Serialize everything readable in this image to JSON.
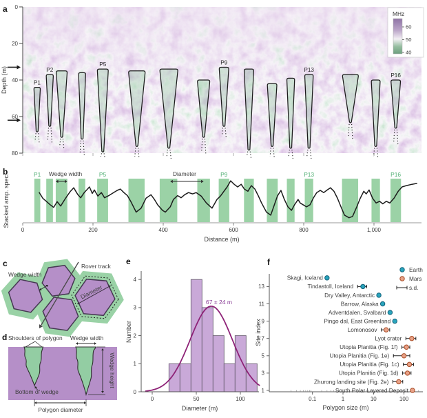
{
  "panels": {
    "a": {
      "letter": "a",
      "ylabel": "Depth (m)",
      "colorbar": {
        "title": "MHz",
        "ticks": [
          60,
          50,
          40
        ]
      }
    },
    "b": {
      "letter": "b",
      "ylabel": "Stacked amp. spec.",
      "xlabel": "Distance (m)",
      "xtick_labels": [
        "0",
        "200",
        "400",
        "600",
        "800",
        "1,000"
      ],
      "ann_wedge_width": "Wedge width",
      "ann_diameter": "Diameter"
    },
    "c": {
      "letter": "c",
      "rover_track": "Rover track",
      "wedge_width": "Wedge width",
      "diameter": "Diameter"
    },
    "d": {
      "letter": "d",
      "shoulders": "Shoulders of polygon",
      "wedge_width": "Wedge width",
      "bottom": "Bottom of wedge",
      "height": "Wedge height",
      "diameter": "Polygon diameter"
    },
    "e": {
      "letter": "e",
      "ylabel": "Number",
      "xlabel": "Diameter (m)",
      "annotation": "67 ± 24 m"
    },
    "f": {
      "letter": "f",
      "ylabel": "Site index",
      "xlabel": "Polygon size (m)",
      "legend": {
        "earth": "Earth",
        "mars": "Mars",
        "sd": "s.d."
      }
    }
  },
  "colors": {
    "band_green": "#9bd2a6",
    "band_label_green": "#4fae72",
    "curve_black": "#1c1c1c",
    "hist_bar_fill": "#c9a9d8",
    "hist_bar_edge": "#6e6276",
    "gauss_purple": "#8e2277",
    "annotation_purple": "#8b3f97",
    "earth_fill": "#2aa5bd",
    "earth_edge": "#11617a",
    "mars_fill": "#e8a187",
    "mars_edge": "#a84b24",
    "diagram_purple": "#b58fc8",
    "diagram_green": "#9ad2a6",
    "wedge_outline": "#1b1b1b",
    "axis_dark": "#444444",
    "axis_light": "#999999",
    "text_dark": "#3c3c3c"
  },
  "chart_data": [
    {
      "panel": "a",
      "type": "heatmap",
      "description": "Rover penetrating radargram with interpreted ice-wedge outlines",
      "ylabel": "Depth (m)",
      "depth_ticks_m": [
        0,
        20,
        40,
        60,
        80
      ],
      "xlim_m": [
        0,
        1135
      ],
      "arrow_depths_m": [
        33,
        62
      ],
      "colorbar": {
        "label": "MHz",
        "ticks": [
          60,
          50,
          40
        ]
      },
      "wedges": [
        {
          "label": "P1",
          "center_m": 41,
          "width_m": 18,
          "top_m": 44,
          "bottom_m": 68
        },
        {
          "label": "P2",
          "center_m": 77,
          "width_m": 20,
          "top_m": 37,
          "bottom_m": 65
        },
        {
          "label": null,
          "center_m": 111,
          "width_m": 31,
          "top_m": 35,
          "bottom_m": 71
        },
        {
          "label": null,
          "center_m": 169,
          "width_m": 20,
          "top_m": 36,
          "bottom_m": 72
        },
        {
          "label": "P5",
          "center_m": 228,
          "width_m": 31,
          "top_m": 34,
          "bottom_m": 79
        },
        {
          "label": null,
          "center_m": 325,
          "width_m": 47,
          "top_m": 35,
          "bottom_m": 76
        },
        {
          "label": null,
          "center_m": 416,
          "width_m": 51,
          "top_m": 34,
          "bottom_m": 77
        },
        {
          "label": null,
          "center_m": 515,
          "width_m": 35,
          "top_m": 40,
          "bottom_m": 71
        },
        {
          "label": "P9",
          "center_m": 573,
          "width_m": 27,
          "top_m": 33,
          "bottom_m": 65
        },
        {
          "label": null,
          "center_m": 644,
          "width_m": 27,
          "top_m": 34,
          "bottom_m": 78
        },
        {
          "label": null,
          "center_m": 710,
          "width_m": 27,
          "top_m": 42,
          "bottom_m": 76
        },
        {
          "label": null,
          "center_m": 763,
          "width_m": 22,
          "top_m": 39,
          "bottom_m": 77
        },
        {
          "label": "P13",
          "center_m": 815,
          "width_m": 24,
          "top_m": 37,
          "bottom_m": 77
        },
        {
          "label": null,
          "center_m": 933,
          "width_m": 45,
          "top_m": 37,
          "bottom_m": 63
        },
        {
          "label": null,
          "center_m": 1005,
          "width_m": 25,
          "top_m": 40,
          "bottom_m": 76
        },
        {
          "label": "P16",
          "center_m": 1062,
          "width_m": 27,
          "top_m": 40,
          "bottom_m": 66
        }
      ]
    },
    {
      "panel": "b",
      "type": "line",
      "xlabel": "Distance (m)",
      "ylabel": "Stacked amp. spec.",
      "xlim": [
        0,
        1135
      ],
      "xticks": [
        0,
        200,
        400,
        600,
        800,
        1000
      ],
      "annotations": [
        {
          "text": "Wedge width",
          "span_m": [
            94,
            127
          ]
        },
        {
          "text": "Diameter",
          "span_m": [
            420,
            515
          ]
        }
      ],
      "bands": [
        {
          "from_m": 33,
          "to_m": 50,
          "label": "P1"
        },
        {
          "from_m": 67,
          "to_m": 86,
          "label": null
        },
        {
          "from_m": 94,
          "to_m": 127,
          "label": null
        },
        {
          "from_m": 159,
          "to_m": 178,
          "label": null
        },
        {
          "from_m": 212,
          "to_m": 243,
          "label": "P5"
        },
        {
          "from_m": 301,
          "to_m": 347,
          "label": null
        },
        {
          "from_m": 390,
          "to_m": 440,
          "label": null
        },
        {
          "from_m": 497,
          "to_m": 533,
          "label": null
        },
        {
          "from_m": 558,
          "to_m": 588,
          "label": "P9"
        },
        {
          "from_m": 630,
          "to_m": 658,
          "label": null
        },
        {
          "from_m": 695,
          "to_m": 726,
          "label": null
        },
        {
          "from_m": 752,
          "to_m": 774,
          "label": null
        },
        {
          "from_m": 803,
          "to_m": 827,
          "label": "P13"
        },
        {
          "from_m": 909,
          "to_m": 955,
          "label": null
        },
        {
          "from_m": 993,
          "to_m": 1017,
          "label": null
        },
        {
          "from_m": 1047,
          "to_m": 1077,
          "label": "P16"
        }
      ],
      "points": [
        [
          47,
          0.68
        ],
        [
          57,
          0.55
        ],
        [
          67,
          0.48
        ],
        [
          78,
          0.4
        ],
        [
          88,
          0.34
        ],
        [
          98,
          0.47
        ],
        [
          108,
          0.37
        ],
        [
          122,
          0.55
        ],
        [
          135,
          0.7
        ],
        [
          145,
          0.79
        ],
        [
          157,
          0.63
        ],
        [
          165,
          0.56
        ],
        [
          175,
          0.68
        ],
        [
          190,
          0.81
        ],
        [
          198,
          0.66
        ],
        [
          204,
          0.74
        ],
        [
          214,
          0.6
        ],
        [
          224,
          0.68
        ],
        [
          233,
          0.56
        ],
        [
          245,
          0.61
        ],
        [
          255,
          0.66
        ],
        [
          269,
          0.73
        ],
        [
          278,
          0.76
        ],
        [
          288,
          0.68
        ],
        [
          298,
          0.61
        ],
        [
          308,
          0.47
        ],
        [
          323,
          0.23
        ],
        [
          337,
          0.32
        ],
        [
          351,
          0.55
        ],
        [
          365,
          0.63
        ],
        [
          375,
          0.52
        ],
        [
          384,
          0.4
        ],
        [
          398,
          0.27
        ],
        [
          406,
          0.23
        ],
        [
          420,
          0.35
        ],
        [
          429,
          0.52
        ],
        [
          441,
          0.61
        ],
        [
          451,
          0.56
        ],
        [
          461,
          0.63
        ],
        [
          472,
          0.68
        ],
        [
          484,
          0.65
        ],
        [
          494,
          0.68
        ],
        [
          508,
          0.6
        ],
        [
          523,
          0.44
        ],
        [
          539,
          0.32
        ],
        [
          553,
          0.52
        ],
        [
          563,
          0.6
        ],
        [
          582,
          0.81
        ],
        [
          592,
          0.95
        ],
        [
          602,
          0.87
        ],
        [
          612,
          0.81
        ],
        [
          622,
          0.87
        ],
        [
          631,
          0.76
        ],
        [
          641,
          0.71
        ],
        [
          651,
          0.84
        ],
        [
          661,
          0.76
        ],
        [
          671,
          0.6
        ],
        [
          680,
          0.44
        ],
        [
          694,
          0.23
        ],
        [
          706,
          0.16
        ],
        [
          716,
          0.39
        ],
        [
          725,
          0.6
        ],
        [
          735,
          0.73
        ],
        [
          745,
          0.52
        ],
        [
          755,
          0.35
        ],
        [
          765,
          0.27
        ],
        [
          774,
          0.4
        ],
        [
          784,
          0.52
        ],
        [
          790,
          0.44
        ],
        [
          798,
          0.4
        ],
        [
          808,
          0.35
        ],
        [
          818,
          0.4
        ],
        [
          827,
          0.55
        ],
        [
          837,
          0.68
        ],
        [
          847,
          0.73
        ],
        [
          857,
          0.68
        ],
        [
          867,
          0.74
        ],
        [
          876,
          0.79
        ],
        [
          886,
          0.71
        ],
        [
          896,
          0.55
        ],
        [
          906,
          0.35
        ],
        [
          916,
          0.16
        ],
        [
          929,
          0.1
        ],
        [
          939,
          0.13
        ],
        [
          951,
          0.35
        ],
        [
          961,
          0.55
        ],
        [
          971,
          0.71
        ],
        [
          978,
          0.65
        ],
        [
          986,
          0.74
        ],
        [
          996,
          0.55
        ],
        [
          1006,
          0.44
        ],
        [
          1016,
          0.48
        ],
        [
          1025,
          0.42
        ],
        [
          1035,
          0.48
        ],
        [
          1045,
          0.44
        ],
        [
          1057,
          0.55
        ],
        [
          1069,
          0.71
        ],
        [
          1080,
          0.81
        ],
        [
          1092,
          0.84
        ],
        [
          1108,
          0.87
        ],
        [
          1122,
          0.89
        ]
      ]
    },
    {
      "panel": "e",
      "type": "histogram",
      "xlabel": "Diameter (m)",
      "ylabel": "Number",
      "xticks": [
        0,
        50,
        100
      ],
      "yticks": [
        0,
        1,
        2,
        3,
        4
      ],
      "xlim": [
        -10,
        120
      ],
      "bin_edges_m": [
        19,
        31.5,
        44,
        56.5,
        69,
        81.5,
        94,
        106.5,
        119
      ],
      "counts": [
        1,
        1,
        4,
        3,
        2,
        1,
        2,
        1
      ],
      "fit": {
        "mean": 67,
        "sd": 24,
        "peak": 3.05
      },
      "annotation": "67 ± 24 m"
    },
    {
      "panel": "f",
      "type": "scatter",
      "xscale": "log",
      "xlabel": "Polygon size (m)",
      "ylabel": "Site index",
      "xtick_labels": [
        "0.1",
        "1",
        "10",
        "100"
      ],
      "xtick_values": [
        0.1,
        1,
        10,
        100
      ],
      "yticks": [
        1,
        3,
        5,
        7,
        9,
        11,
        13
      ],
      "legend": [
        "Earth",
        "Mars",
        "s.d."
      ],
      "points": [
        {
          "site_index": 14,
          "label": "Skagi, Iceland",
          "planet": "Earth",
          "size_m": 0.3,
          "sd_m": null
        },
        {
          "site_index": 13,
          "label": "Tindastoll, Iceland",
          "planet": "Earth",
          "size_m": 4.5,
          "sd_m": 1.5
        },
        {
          "site_index": 12,
          "label": "Dry Valley, Antarctic",
          "planet": "Earth",
          "size_m": 15,
          "sd_m": null
        },
        {
          "site_index": 11,
          "label": "Barrow, Alaska",
          "planet": "Earth",
          "size_m": 20,
          "sd_m": null
        },
        {
          "site_index": 10,
          "label": "Adventdalen, Svalbard",
          "planet": "Earth",
          "size_m": 35,
          "sd_m": null
        },
        {
          "site_index": 9,
          "label": "Pingo dal, East Greenland",
          "planet": "Earth",
          "size_m": 50,
          "sd_m": null
        },
        {
          "site_index": 8,
          "label": "Lomonosov",
          "planet": "Mars",
          "size_m": 26,
          "sd_m": 8
        },
        {
          "site_index": 7,
          "label": "Lyot crater",
          "planet": "Mars",
          "size_m": 180,
          "sd_m": 65
        },
        {
          "site_index": 6,
          "label": "Utopia Planitia (Fig. 1f)",
          "planet": "Mars",
          "size_m": 120,
          "sd_m": 35
        },
        {
          "site_index": 5,
          "label": "Utopia Planitia (Fig. 1e)",
          "planet": "Mars",
          "size_m": 100,
          "sd_m": 55
        },
        {
          "site_index": 4,
          "label": "Utopia Planitia (Fig. 1c)",
          "planet": "Mars",
          "size_m": 150,
          "sd_m": 55
        },
        {
          "site_index": 3,
          "label": "Utopia Planitia (Fig. 1d)",
          "planet": "Mars",
          "size_m": 130,
          "sd_m": 40
        },
        {
          "site_index": 2,
          "label": "Zhurong landing site (Fig. 2e)",
          "planet": "Mars",
          "size_m": 67,
          "sd_m": 24
        },
        {
          "site_index": 1,
          "label": "South Polar Layered Deposit",
          "planet": "Mars",
          "size_m": 190,
          "sd_m": null
        }
      ]
    }
  ]
}
